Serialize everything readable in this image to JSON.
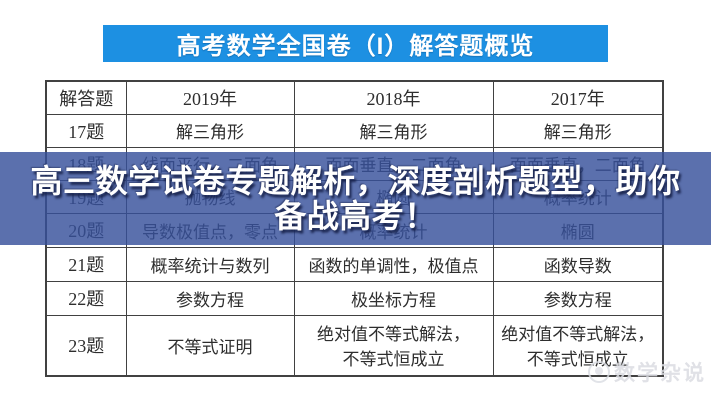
{
  "banner": {
    "title": "高考数学全国卷（I）解答题概览"
  },
  "table": {
    "headers": [
      "解答题",
      "2019年",
      "2018年",
      "2017年"
    ],
    "rows": [
      {
        "label": "17题",
        "cells": [
          "解三角形",
          "解三角形",
          "解三角形"
        ]
      },
      {
        "label": "18题",
        "cells": [
          "线面平行，二面角",
          "面面垂直，二面角",
          "面面垂直，二面角"
        ]
      },
      {
        "label": "19题",
        "cells": [
          "抛物线",
          "椭圆",
          "概率统计"
        ]
      },
      {
        "label": "20题",
        "cells": [
          "导数极值点，零点",
          "概率统计",
          "椭圆"
        ]
      },
      {
        "label": "21题",
        "cells": [
          "概率统计与数列",
          "函数的单调性，极值点",
          "函数导数"
        ]
      },
      {
        "label": "22题",
        "cells": [
          "参数方程",
          "极坐标方程",
          "参数方程"
        ]
      },
      {
        "label": "23题",
        "cells": [
          "不等式证明",
          "绝对值不等式解法，\n不等式恒成立",
          "绝对值不等式解法，\n不等式恒成立"
        ]
      }
    ]
  },
  "overlay": {
    "line1": "高三数学试卷专题解析，深度剖析题型，助你",
    "line2": "备战高考！"
  },
  "watermark": {
    "text": "数学杂说",
    "logo_icon": "circle-logo-icon"
  },
  "colors": {
    "banner_bg": "#1d90e2",
    "overlay_bg": "rgba(55,81,155,0.82)",
    "table_border": "#414141",
    "banner_text": "#ffffff",
    "overlay_text": "#ffffff"
  }
}
